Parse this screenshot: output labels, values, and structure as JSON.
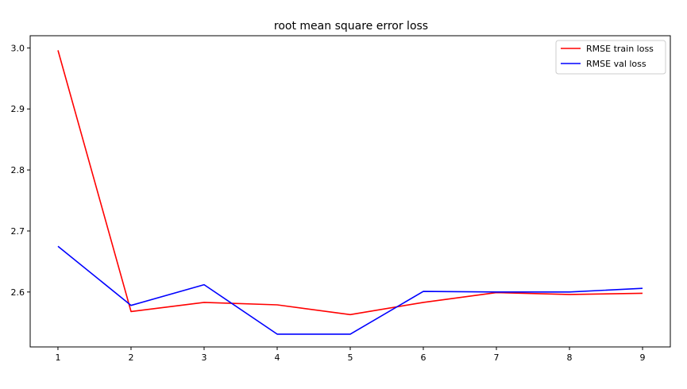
{
  "chart_data": {
    "type": "line",
    "title": "root mean square error loss",
    "xlabel": "",
    "ylabel": "",
    "x": [
      1,
      2,
      3,
      4,
      5,
      6,
      7,
      8,
      9
    ],
    "xlim": [
      0.62,
      9.38
    ],
    "ylim": [
      2.51,
      3.02
    ],
    "xticks": [
      "1",
      "2",
      "3",
      "4",
      "5",
      "6",
      "7",
      "8",
      "9"
    ],
    "yticks": [
      "2.6",
      "2.7",
      "2.8",
      "2.9",
      "3.0"
    ],
    "grid": false,
    "legend_position": "top-right",
    "series": [
      {
        "name": "RMSE train loss",
        "color": "#ff0000",
        "values": [
          2.996,
          2.568,
          2.583,
          2.579,
          2.563,
          2.583,
          2.599,
          2.596,
          2.598
        ]
      },
      {
        "name": "RMSE val loss",
        "color": "#0000ff",
        "values": [
          2.675,
          2.578,
          2.612,
          2.531,
          2.531,
          2.601,
          2.6,
          2.6,
          2.606
        ]
      }
    ]
  }
}
